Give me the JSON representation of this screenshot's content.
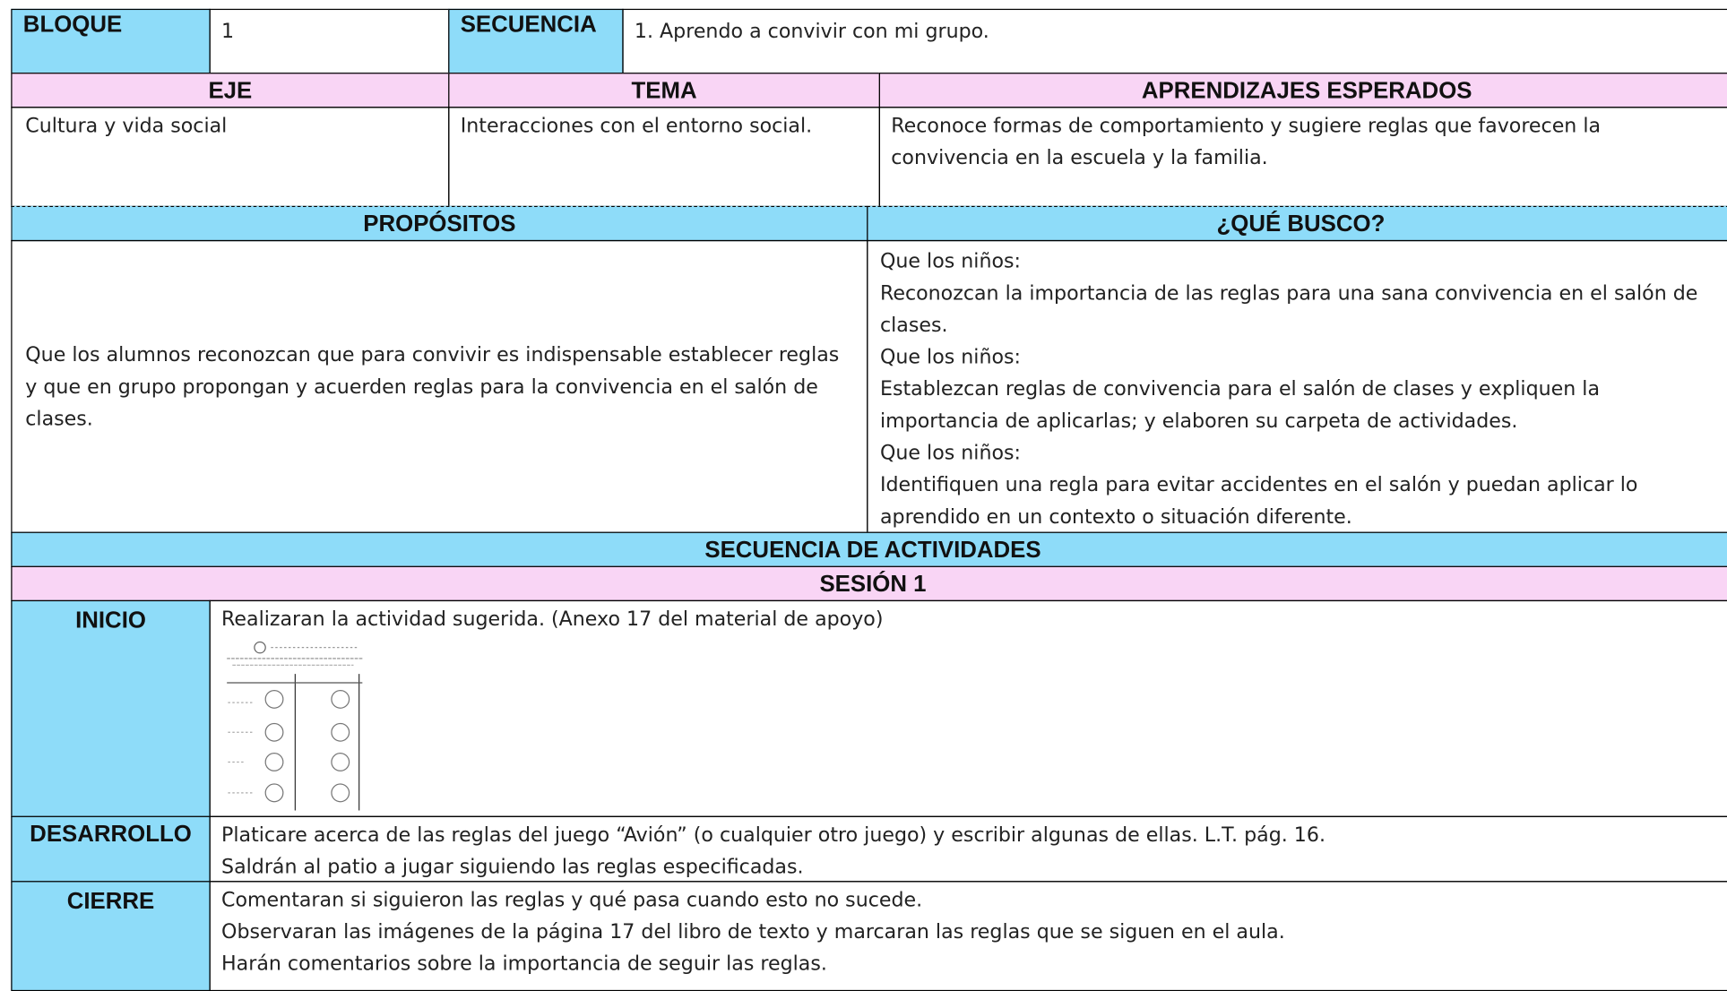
{
  "header": {
    "bloque_label": "BLOQUE",
    "bloque": "1",
    "secuencia_label": "SECUENCIA",
    "secuencia": "1. Aprendo a convivir con mi grupo."
  },
  "row1": {
    "headers": [
      "EJE",
      "TEMA",
      "APRENDIZAJES ESPERADOS"
    ],
    "cells": [
      "Cultura y vida social",
      "Interacciones con el entorno social.",
      "Reconoce formas de comportamiento y sugiere reglas que favorecen la convivencia en la escuela y la familia."
    ]
  },
  "row2": {
    "headers": [
      "PROPÓSITOS",
      "¿QUÉ BUSCO?"
    ],
    "propositos": "Que los alumnos reconozcan que para convivir es indispensable establecer reglas y que en grupo propongan y acuerden reglas para la convivencia en el salón de clases.",
    "busco": [
      "Que los niños:",
      "Reconozcan la importancia de las reglas para una sana convivencia en el salón de clases.",
      "Que los niños:",
      "Establezcan reglas de convivencia para el salón de clases y expliquen la importancia de aplicarlas; y elaboren su carpeta de actividades.",
      "Que los niños:",
      "Identifiquen una regla para evitar accidentes en el salón y puedan aplicar lo aprendido en un contexto o situación diferente."
    ]
  },
  "secuencia_actividades": "SECUENCIA DE ACTIVIDADES",
  "sesion": "SESIÓN 1",
  "phases": [
    {
      "label": "INICIO",
      "lines": [
        "Realizaran la actividad sugerida. (Anexo 17 del material de apoyo)"
      ]
    },
    {
      "label": "DESARROLLO",
      "lines": [
        "Platicare acerca de las reglas del juego “Avión” (o cualquier otro juego) y escribir algunas de ellas. L.T. pág. 16.",
        "Saldrán al patio a jugar siguiendo las reglas especificadas."
      ]
    },
    {
      "label": "CIERRE",
      "lines": [
        "Comentaran si siguieron las reglas y qué pasa cuando esto no sucede.",
        "Observaran las imágenes de la página 17 del libro de texto y marcaran las reglas que se siguen en el aula.",
        "Harán comentarios sobre la importancia de seguir las reglas."
      ]
    }
  ]
}
